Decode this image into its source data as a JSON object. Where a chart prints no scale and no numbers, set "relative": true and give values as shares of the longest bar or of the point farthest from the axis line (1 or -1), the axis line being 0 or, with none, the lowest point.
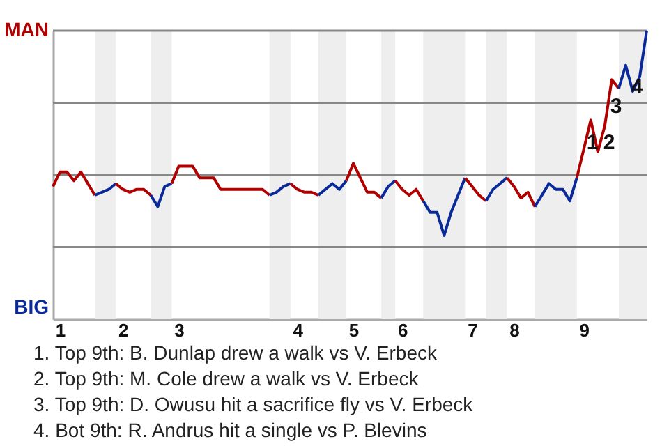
{
  "chart_data": {
    "type": "line",
    "relative": true,
    "categories": [
      null,
      "1",
      null,
      null,
      null,
      null,
      null,
      null,
      null,
      null,
      "2",
      null,
      null,
      null,
      null,
      null,
      null,
      null,
      "3",
      null,
      null,
      null,
      null,
      null,
      null,
      null,
      null,
      null,
      null,
      null,
      null,
      null,
      null,
      null,
      null,
      "4",
      null,
      null,
      null,
      null,
      null,
      null,
      null,
      "5",
      null,
      null,
      null,
      null,
      null,
      null,
      "6",
      null,
      null,
      null,
      null,
      null,
      null,
      null,
      null,
      null,
      "7",
      null,
      null,
      null,
      null,
      null,
      "8",
      null,
      null,
      null,
      null,
      null,
      null,
      null,
      null,
      null,
      "9",
      null,
      null,
      null,
      null,
      null,
      null,
      null,
      null,
      null
    ],
    "series": [
      {
        "color": "#b00000",
        "values": [
          0.46,
          0.51,
          0.51,
          0.48,
          0.51,
          0.47,
          0.43,
          null,
          null,
          null,
          null,
          null,
          null,
          null,
          null,
          null,
          null,
          null,
          null,
          null,
          null,
          null,
          null,
          null,
          null,
          null,
          null,
          null,
          null,
          null,
          null,
          null,
          null,
          null,
          null,
          null,
          null,
          null,
          null,
          null,
          null,
          null,
          null,
          null,
          null,
          null,
          null,
          null,
          null,
          null,
          null,
          null,
          null,
          null,
          null,
          null,
          null,
          null,
          null,
          null,
          null,
          null,
          null,
          null,
          null,
          null,
          null,
          null,
          null,
          null,
          null,
          null,
          null,
          null,
          null,
          null,
          null,
          null,
          null,
          null,
          null,
          null,
          null,
          null,
          null,
          null
        ]
      },
      {
        "color": "#0a2a9a",
        "values": [
          null,
          null,
          null,
          null,
          null,
          null,
          0.43,
          0.44,
          0.45,
          0.47,
          null,
          null,
          null,
          null,
          null,
          null,
          null,
          null,
          null,
          null,
          null,
          null,
          null,
          null,
          null,
          null,
          null,
          null,
          null,
          null,
          null,
          null,
          null,
          null,
          null,
          null,
          null,
          null,
          null,
          null,
          null,
          null,
          null,
          null,
          null,
          null,
          null,
          null,
          null,
          null,
          null,
          null,
          null,
          null,
          null,
          null,
          null,
          null,
          null,
          null,
          null,
          null,
          null,
          null,
          null,
          null,
          null,
          null,
          null,
          null,
          null,
          null,
          null,
          null,
          null,
          null,
          null,
          null,
          null,
          null,
          null,
          null,
          null,
          null,
          null,
          null
        ]
      },
      {
        "color": "#b00000",
        "values": [
          null,
          null,
          null,
          null,
          null,
          null,
          null,
          null,
          null,
          0.47,
          0.45,
          0.44,
          0.45,
          0.45,
          0.43,
          null,
          null,
          null,
          null,
          null,
          null,
          null,
          null,
          null,
          null,
          null,
          null,
          null,
          null,
          null,
          null,
          null,
          null,
          null,
          null,
          null,
          null,
          null,
          null,
          null,
          null,
          null,
          null,
          null,
          null,
          null,
          null,
          null,
          null,
          null,
          null,
          null,
          null,
          null,
          null,
          null,
          null,
          null,
          null,
          null,
          null,
          null,
          null,
          null,
          null,
          null,
          null,
          null,
          null,
          null,
          null,
          null,
          null,
          null,
          null,
          null,
          null,
          null,
          null,
          null,
          null,
          null,
          null,
          null,
          null,
          null
        ]
      },
      {
        "color": "#0a2a9a",
        "values": [
          null,
          null,
          null,
          null,
          null,
          null,
          null,
          null,
          null,
          null,
          null,
          null,
          null,
          null,
          0.43,
          0.39,
          0.46,
          0.47,
          null,
          null,
          null,
          null,
          null,
          null,
          null,
          null,
          null,
          null,
          null,
          null,
          null,
          null,
          null,
          null,
          null,
          null,
          null,
          null,
          null,
          null,
          null,
          null,
          null,
          null,
          null,
          null,
          null,
          null,
          null,
          null,
          null,
          null,
          null,
          null,
          null,
          null,
          null,
          null,
          null,
          null,
          null,
          null,
          null,
          null,
          null,
          null,
          null,
          null,
          null,
          null,
          null,
          null,
          null,
          null,
          null,
          null,
          null,
          null,
          null,
          null,
          null,
          null,
          null,
          null,
          null,
          null
        ]
      },
      {
        "color": "#b00000",
        "values": [
          null,
          null,
          null,
          null,
          null,
          null,
          null,
          null,
          null,
          null,
          null,
          null,
          null,
          null,
          null,
          null,
          null,
          0.47,
          0.53,
          0.53,
          0.53,
          0.49,
          0.49,
          0.49,
          0.45,
          0.45,
          0.45,
          0.45,
          0.45,
          0.45,
          0.45,
          0.43,
          null,
          null,
          null,
          null,
          null,
          null,
          null,
          null,
          null,
          null,
          null,
          null,
          null,
          null,
          null,
          null,
          null,
          null,
          null,
          null,
          null,
          null,
          null,
          null,
          null,
          null,
          null,
          null,
          null,
          null,
          null,
          null,
          null,
          null,
          null,
          null,
          null,
          null,
          null,
          null,
          null,
          null,
          null,
          null,
          null,
          null,
          null,
          null,
          null,
          null,
          null,
          null,
          null,
          null
        ]
      },
      {
        "color": "#0a2a9a",
        "values": [
          null,
          null,
          null,
          null,
          null,
          null,
          null,
          null,
          null,
          null,
          null,
          null,
          null,
          null,
          null,
          null,
          null,
          null,
          null,
          null,
          null,
          null,
          null,
          null,
          null,
          null,
          null,
          null,
          null,
          null,
          null,
          0.43,
          0.44,
          0.46,
          0.47,
          null,
          null,
          null,
          null,
          null,
          null,
          null,
          null,
          null,
          null,
          null,
          null,
          null,
          null,
          null,
          null,
          null,
          null,
          null,
          null,
          null,
          null,
          null,
          null,
          null,
          null,
          null,
          null,
          null,
          null,
          null,
          null,
          null,
          null,
          null,
          null,
          null,
          null,
          null,
          null,
          null,
          null,
          null,
          null,
          null,
          null,
          null,
          null,
          null,
          null,
          null
        ]
      },
      {
        "color": "#b00000",
        "values": [
          null,
          null,
          null,
          null,
          null,
          null,
          null,
          null,
          null,
          null,
          null,
          null,
          null,
          null,
          null,
          null,
          null,
          null,
          null,
          null,
          null,
          null,
          null,
          null,
          null,
          null,
          null,
          null,
          null,
          null,
          null,
          null,
          null,
          null,
          0.47,
          0.45,
          0.44,
          0.44,
          0.43,
          null,
          null,
          null,
          null,
          null,
          null,
          null,
          null,
          null,
          null,
          null,
          null,
          null,
          null,
          null,
          null,
          null,
          null,
          null,
          null,
          null,
          null,
          null,
          null,
          null,
          null,
          null,
          null,
          null,
          null,
          null,
          null,
          null,
          null,
          null,
          null,
          null,
          null,
          null,
          null,
          null,
          null,
          null,
          null,
          null,
          null,
          null
        ]
      },
      {
        "color": "#0a2a9a",
        "values": [
          null,
          null,
          null,
          null,
          null,
          null,
          null,
          null,
          null,
          null,
          null,
          null,
          null,
          null,
          null,
          null,
          null,
          null,
          null,
          null,
          null,
          null,
          null,
          null,
          null,
          null,
          null,
          null,
          null,
          null,
          null,
          null,
          null,
          null,
          null,
          null,
          null,
          null,
          0.43,
          0.45,
          0.47,
          0.45,
          0.48,
          null,
          null,
          null,
          null,
          null,
          null,
          null,
          null,
          null,
          null,
          null,
          null,
          null,
          null,
          null,
          null,
          null,
          null,
          null,
          null,
          null,
          null,
          null,
          null,
          null,
          null,
          null,
          null,
          null,
          null,
          null,
          null,
          null,
          null,
          null,
          null,
          null,
          null,
          null,
          null,
          null,
          null,
          null
        ]
      },
      {
        "color": "#b00000",
        "values": [
          null,
          null,
          null,
          null,
          null,
          null,
          null,
          null,
          null,
          null,
          null,
          null,
          null,
          null,
          null,
          null,
          null,
          null,
          null,
          null,
          null,
          null,
          null,
          null,
          null,
          null,
          null,
          null,
          null,
          null,
          null,
          null,
          null,
          null,
          null,
          null,
          null,
          null,
          null,
          null,
          null,
          null,
          0.48,
          0.54,
          0.49,
          0.44,
          0.44,
          0.42,
          null,
          null,
          null,
          null,
          null,
          null,
          null,
          null,
          null,
          null,
          null,
          null,
          null,
          null,
          null,
          null,
          null,
          null,
          null,
          null,
          null,
          null,
          null,
          null,
          null,
          null,
          null,
          null,
          null,
          null,
          null,
          null,
          null,
          null,
          null,
          null,
          null,
          null
        ]
      },
      {
        "color": "#0a2a9a",
        "values": [
          null,
          null,
          null,
          null,
          null,
          null,
          null,
          null,
          null,
          null,
          null,
          null,
          null,
          null,
          null,
          null,
          null,
          null,
          null,
          null,
          null,
          null,
          null,
          null,
          null,
          null,
          null,
          null,
          null,
          null,
          null,
          null,
          null,
          null,
          null,
          null,
          null,
          null,
          null,
          null,
          null,
          null,
          null,
          null,
          null,
          null,
          null,
          0.42,
          0.46,
          0.48,
          null,
          null,
          null,
          null,
          null,
          null,
          null,
          null,
          null,
          null,
          null,
          null,
          null,
          null,
          null,
          null,
          null,
          null,
          null,
          null,
          null,
          null,
          null,
          null,
          null,
          null,
          null,
          null,
          null,
          null,
          null,
          null,
          null,
          null,
          null,
          null
        ]
      },
      {
        "color": "#b00000",
        "values": [
          null,
          null,
          null,
          null,
          null,
          null,
          null,
          null,
          null,
          null,
          null,
          null,
          null,
          null,
          null,
          null,
          null,
          null,
          null,
          null,
          null,
          null,
          null,
          null,
          null,
          null,
          null,
          null,
          null,
          null,
          null,
          null,
          null,
          null,
          null,
          null,
          null,
          null,
          null,
          null,
          null,
          null,
          null,
          null,
          null,
          null,
          null,
          null,
          null,
          0.48,
          0.45,
          0.43,
          0.45,
          0.41,
          null,
          null,
          null,
          null,
          null,
          null,
          null,
          null,
          null,
          null,
          null,
          null,
          null,
          null,
          null,
          null,
          null,
          null,
          null,
          null,
          null,
          null,
          null,
          null,
          null,
          null,
          null,
          null,
          null,
          null,
          null,
          null
        ]
      },
      {
        "color": "#0a2a9a",
        "values": [
          null,
          null,
          null,
          null,
          null,
          null,
          null,
          null,
          null,
          null,
          null,
          null,
          null,
          null,
          null,
          null,
          null,
          null,
          null,
          null,
          null,
          null,
          null,
          null,
          null,
          null,
          null,
          null,
          null,
          null,
          null,
          null,
          null,
          null,
          null,
          null,
          null,
          null,
          null,
          null,
          null,
          null,
          null,
          null,
          null,
          null,
          null,
          null,
          null,
          null,
          null,
          null,
          null,
          0.41,
          0.37,
          0.37,
          0.29,
          0.37,
          0.43,
          0.49,
          null,
          null,
          null,
          null,
          null,
          null,
          null,
          null,
          null,
          null,
          null,
          null,
          null,
          null,
          null,
          null,
          null,
          null,
          null,
          null,
          null,
          null,
          null,
          null,
          null,
          null
        ]
      },
      {
        "color": "#b00000",
        "values": [
          null,
          null,
          null,
          null,
          null,
          null,
          null,
          null,
          null,
          null,
          null,
          null,
          null,
          null,
          null,
          null,
          null,
          null,
          null,
          null,
          null,
          null,
          null,
          null,
          null,
          null,
          null,
          null,
          null,
          null,
          null,
          null,
          null,
          null,
          null,
          null,
          null,
          null,
          null,
          null,
          null,
          null,
          null,
          null,
          null,
          null,
          null,
          null,
          null,
          null,
          null,
          null,
          null,
          null,
          null,
          null,
          null,
          null,
          null,
          0.49,
          0.46,
          0.43,
          0.41,
          null,
          null,
          null,
          null,
          null,
          null,
          null,
          null,
          null,
          null,
          null,
          null,
          null,
          null,
          null,
          null,
          null,
          null,
          null,
          null,
          null,
          null,
          null
        ]
      },
      {
        "color": "#0a2a9a",
        "values": [
          null,
          null,
          null,
          null,
          null,
          null,
          null,
          null,
          null,
          null,
          null,
          null,
          null,
          null,
          null,
          null,
          null,
          null,
          null,
          null,
          null,
          null,
          null,
          null,
          null,
          null,
          null,
          null,
          null,
          null,
          null,
          null,
          null,
          null,
          null,
          null,
          null,
          null,
          null,
          null,
          null,
          null,
          null,
          null,
          null,
          null,
          null,
          null,
          null,
          null,
          null,
          null,
          null,
          null,
          null,
          null,
          null,
          null,
          null,
          null,
          null,
          null,
          0.41,
          0.45,
          0.47,
          0.49,
          null,
          null,
          null,
          null,
          null,
          null,
          null,
          null,
          null,
          null,
          null,
          null,
          null,
          null,
          null,
          null,
          null,
          null,
          null,
          null
        ]
      },
      {
        "color": "#b00000",
        "values": [
          null,
          null,
          null,
          null,
          null,
          null,
          null,
          null,
          null,
          null,
          null,
          null,
          null,
          null,
          null,
          null,
          null,
          null,
          null,
          null,
          null,
          null,
          null,
          null,
          null,
          null,
          null,
          null,
          null,
          null,
          null,
          null,
          null,
          null,
          null,
          null,
          null,
          null,
          null,
          null,
          null,
          null,
          null,
          null,
          null,
          null,
          null,
          null,
          null,
          null,
          null,
          null,
          null,
          null,
          null,
          null,
          null,
          null,
          null,
          null,
          null,
          null,
          null,
          null,
          null,
          0.49,
          0.46,
          0.42,
          0.44,
          0.39,
          null,
          null,
          null,
          null,
          null,
          null,
          null,
          null,
          null,
          null,
          null,
          null,
          null,
          null,
          null,
          null
        ]
      },
      {
        "color": "#0a2a9a",
        "values": [
          null,
          null,
          null,
          null,
          null,
          null,
          null,
          null,
          null,
          null,
          null,
          null,
          null,
          null,
          null,
          null,
          null,
          null,
          null,
          null,
          null,
          null,
          null,
          null,
          null,
          null,
          null,
          null,
          null,
          null,
          null,
          null,
          null,
          null,
          null,
          null,
          null,
          null,
          null,
          null,
          null,
          null,
          null,
          null,
          null,
          null,
          null,
          null,
          null,
          null,
          null,
          null,
          null,
          null,
          null,
          null,
          null,
          null,
          null,
          null,
          null,
          null,
          null,
          null,
          null,
          null,
          null,
          null,
          null,
          0.39,
          0.43,
          0.47,
          0.45,
          0.45,
          0.41,
          0.49,
          null,
          null,
          null,
          null,
          null,
          null,
          null,
          null,
          null,
          null
        ]
      },
      {
        "color": "#b00000",
        "values": [
          null,
          null,
          null,
          null,
          null,
          null,
          null,
          null,
          null,
          null,
          null,
          null,
          null,
          null,
          null,
          null,
          null,
          null,
          null,
          null,
          null,
          null,
          null,
          null,
          null,
          null,
          null,
          null,
          null,
          null,
          null,
          null,
          null,
          null,
          null,
          null,
          null,
          null,
          null,
          null,
          null,
          null,
          null,
          null,
          null,
          null,
          null,
          null,
          null,
          null,
          null,
          null,
          null,
          null,
          null,
          null,
          null,
          null,
          null,
          null,
          null,
          null,
          null,
          null,
          null,
          null,
          null,
          null,
          null,
          null,
          null,
          null,
          null,
          null,
          null,
          0.49,
          0.59,
          0.69,
          0.58,
          0.67,
          0.83,
          0.8,
          null,
          null,
          null,
          null
        ]
      },
      {
        "color": "#0a2a9a",
        "values": [
          null,
          null,
          null,
          null,
          null,
          null,
          null,
          null,
          null,
          null,
          null,
          null,
          null,
          null,
          null,
          null,
          null,
          null,
          null,
          null,
          null,
          null,
          null,
          null,
          null,
          null,
          null,
          null,
          null,
          null,
          null,
          null,
          null,
          null,
          null,
          null,
          null,
          null,
          null,
          null,
          null,
          null,
          null,
          null,
          null,
          null,
          null,
          null,
          null,
          null,
          null,
          null,
          null,
          null,
          null,
          null,
          null,
          null,
          null,
          null,
          null,
          null,
          null,
          null,
          null,
          null,
          null,
          null,
          null,
          null,
          null,
          null,
          null,
          null,
          null,
          null,
          null,
          null,
          null,
          null,
          null,
          0.8,
          0.88,
          0.79,
          0.84,
          1.0
        ]
      }
    ],
    "ref_lines": [
      {
        "axis": "y",
        "value": 0.25,
        "color": "#888888"
      },
      {
        "axis": "y",
        "value": 0.5,
        "color": "#888888"
      },
      {
        "axis": "y",
        "value": 0.75,
        "color": "#888888"
      },
      {
        "axis": "y",
        "value": 1.0,
        "color": "#888888"
      }
    ],
    "annotations": [
      "MAN",
      "BIG",
      "1",
      "2",
      "3",
      "4",
      "1. Top 9th: B. Dunlap drew a walk vs V. Erbeck",
      "2. Top 9th: M. Cole drew a walk vs V. Erbeck",
      "3. Top 9th: D. Owusu hit a sacrifice fly vs V. Erbeck",
      "4. Bot 9th: R. Andrus hit a single vs P. Blevins"
    ]
  }
}
